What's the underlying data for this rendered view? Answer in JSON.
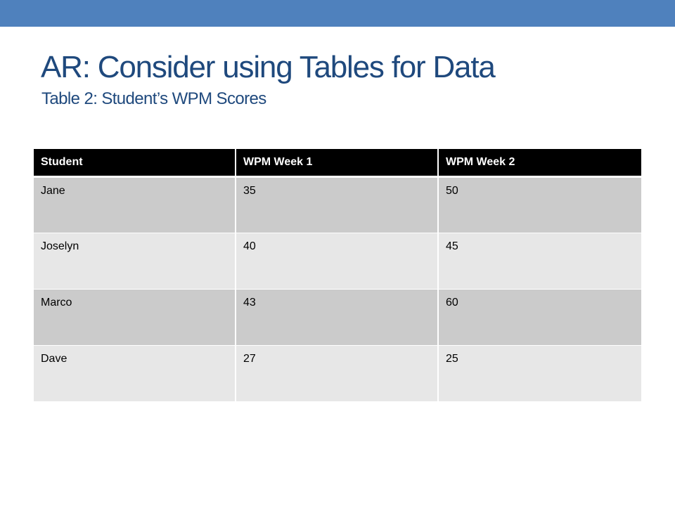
{
  "slide": {
    "title": "AR: Consider using Tables for Data",
    "subtitle": "Table 2: Student’s WPM Scores"
  },
  "table": {
    "headers": [
      "Student",
      "WPM Week 1",
      "WPM Week 2"
    ],
    "rows": [
      [
        "Jane",
        "35",
        "50"
      ],
      [
        "Joselyn",
        "40",
        "45"
      ],
      [
        "Marco",
        "43",
        "60"
      ],
      [
        "Dave",
        "27",
        "25"
      ]
    ]
  },
  "colors": {
    "accent_band": "#4f81bd",
    "title_text": "#1f497d",
    "header_bg": "#000000",
    "row_dark": "#cbcbcb",
    "row_light": "#e7e7e7"
  }
}
